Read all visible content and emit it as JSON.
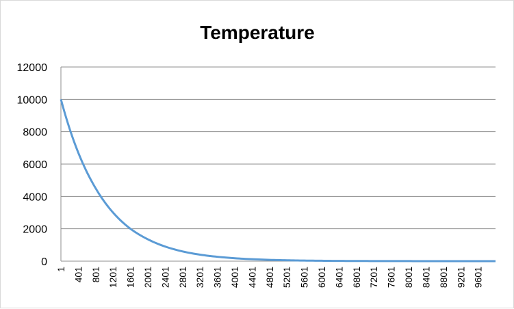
{
  "chart_data": {
    "type": "line",
    "title": "Temperature",
    "xlabel": "",
    "ylabel": "",
    "ylim": [
      0,
      12000
    ],
    "xlim": [
      1,
      10000
    ],
    "grid": true,
    "legend": "none",
    "y_ticks": [
      "0",
      "2000",
      "4000",
      "6000",
      "8000",
      "10000",
      "12000"
    ],
    "x_ticks": [
      "1",
      "401",
      "801",
      "1201",
      "1601",
      "2001",
      "2401",
      "2801",
      "3201",
      "3601",
      "4001",
      "4401",
      "4801",
      "5201",
      "5601",
      "6001",
      "6401",
      "6801",
      "7201",
      "7601",
      "8001",
      "8401",
      "8801",
      "9201",
      "9601"
    ],
    "series": [
      {
        "color": "#5b9bd5",
        "x": [
          1,
          401,
          801,
          1201,
          1601,
          2001,
          2401,
          2801,
          3201,
          3601,
          4001,
          4401,
          4801,
          5201,
          5601,
          6001,
          6401,
          6801,
          7201,
          7601,
          8001,
          8401,
          8801,
          9201,
          9601,
          10000
        ],
        "y": [
          10000,
          6700,
          4500,
          3000,
          2000,
          1350,
          900,
          600,
          400,
          270,
          180,
          120,
          80,
          55,
          35,
          25,
          15,
          10,
          7,
          5,
          3,
          2,
          1,
          1,
          0,
          0
        ]
      }
    ]
  }
}
